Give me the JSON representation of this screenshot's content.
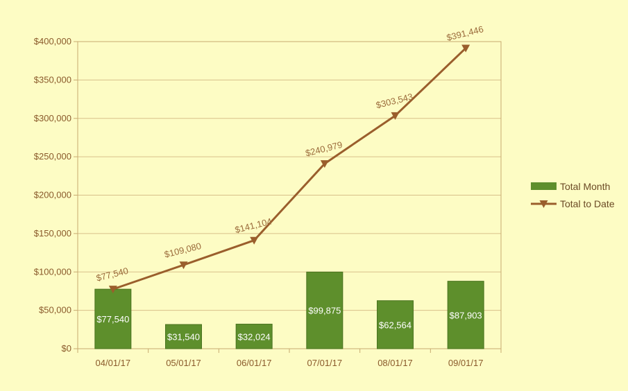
{
  "chart_data": {
    "type": "bar",
    "categories": [
      "04/01/17",
      "05/01/17",
      "06/01/17",
      "07/01/17",
      "08/01/17",
      "09/01/17"
    ],
    "series": [
      {
        "name": "Total Month",
        "type": "bar",
        "values": [
          77540,
          31540,
          32024,
          99875,
          62564,
          87903
        ],
        "labels": [
          "$77,540",
          "$31,540",
          "$32,024",
          "$99,875",
          "$62,564",
          "$87,903"
        ],
        "color": "#5e8f2c"
      },
      {
        "name": "Total to Date",
        "type": "line",
        "marker": "triangle-down",
        "values": [
          77540,
          109080,
          141104,
          240979,
          303543,
          391446
        ],
        "labels": [
          "$77,540",
          "$109,080",
          "$141,104",
          "$240,979",
          "$303,543",
          "$391,446"
        ],
        "color": "#9a5e2c"
      }
    ],
    "ylim": [
      0,
      400000
    ],
    "yticks": [
      0,
      50000,
      100000,
      150000,
      200000,
      250000,
      300000,
      350000,
      400000
    ],
    "ytick_labels": [
      "$0",
      "$50,000",
      "$100,000",
      "$150,000",
      "$200,000",
      "$250,000",
      "$300,000",
      "$350,000",
      "$400,000"
    ],
    "grid": true,
    "legend_position": "right",
    "title": "",
    "xlabel": "",
    "ylabel": "",
    "colors": {
      "background": "#fdfcc4",
      "gridline": "#d8c08a",
      "axis": "#c8aa70",
      "tick_text": "#8a5a2b"
    }
  }
}
